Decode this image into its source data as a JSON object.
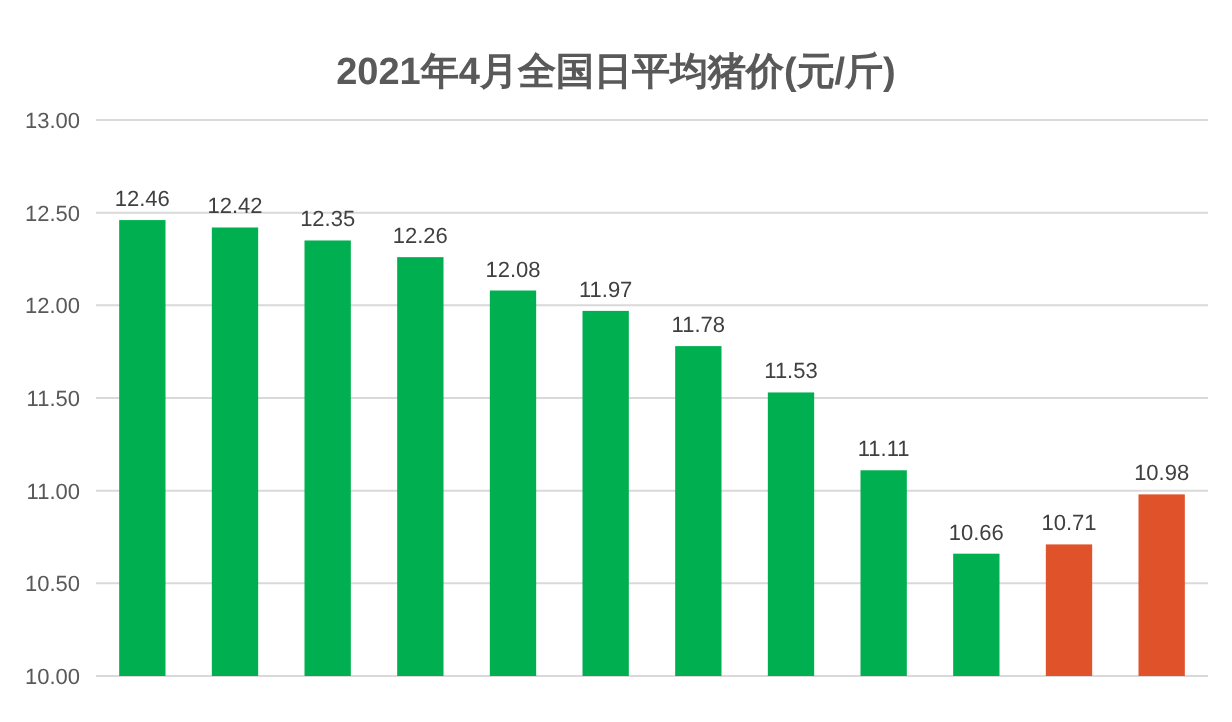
{
  "chart_data": {
    "type": "bar",
    "title": "2021年4月全国日平均猪价(元/斤)",
    "categories": [
      null,
      null,
      null,
      null,
      null,
      null,
      null,
      null,
      null,
      null,
      null,
      null
    ],
    "values": [
      12.46,
      12.42,
      12.35,
      12.26,
      12.08,
      11.97,
      11.78,
      11.53,
      11.11,
      10.66,
      10.71,
      10.98
    ],
    "colors": [
      "#00b050",
      "#00b050",
      "#00b050",
      "#00b050",
      "#00b050",
      "#00b050",
      "#00b050",
      "#00b050",
      "#00b050",
      "#00b050",
      "#e0522a",
      "#e0522a"
    ],
    "ylim": [
      10,
      13
    ],
    "yticks": [
      {
        "value": 10,
        "label": "10.00"
      },
      {
        "value": 10.5,
        "label": "10.50"
      },
      {
        "value": 11,
        "label": "11.00"
      },
      {
        "value": 11.5,
        "label": "11.50"
      },
      {
        "value": 12,
        "label": "12.00"
      },
      {
        "value": 12.5,
        "label": "12.50"
      },
      {
        "value": 13,
        "label": "13.00"
      }
    ],
    "grid": "y",
    "tick_labels": "y",
    "data_labels": true
  }
}
